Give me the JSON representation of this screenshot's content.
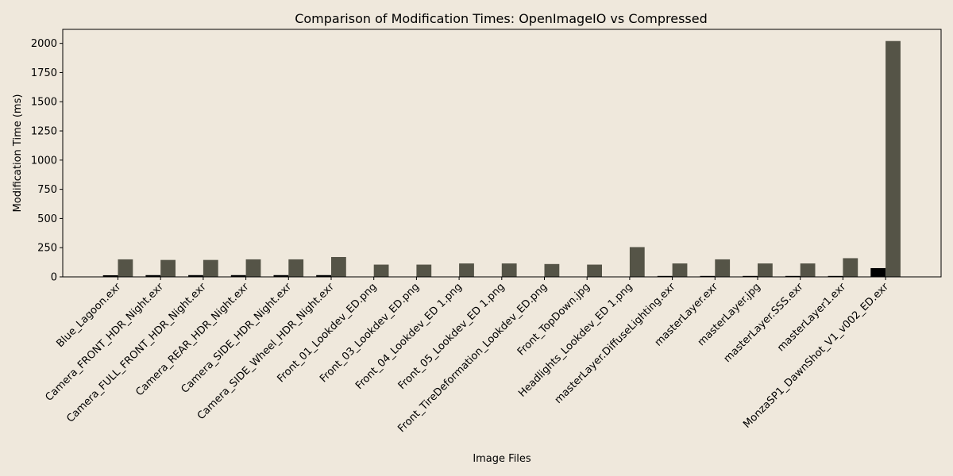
{
  "chart_data": {
    "type": "bar",
    "title": "Comparison of Modification Times: OpenImageIO vs Compressed",
    "xlabel": "Image Files",
    "ylabel": "Modification Time (ms)",
    "ylim": [
      0,
      2120
    ],
    "yticks": [
      0,
      250,
      500,
      750,
      1000,
      1250,
      1500,
      1750,
      2000
    ],
    "grid": false,
    "legend": "none",
    "categories": [
      "Blue_Lagoon.exr",
      "Camera_FRONT_HDR_Night.exr",
      "Camera_FULL_FRONT_HDR_Night.exr",
      "Camera_REAR_HDR_Night.exr",
      "Camera_SIDE_HDR_Night.exr",
      "Camera_SIDE_Wheel_HDR_Night.exr",
      "Front_01_Lookdev_ED.png",
      "Front_03_Lookdev_ED.png",
      "Front_04_Lookdev_ED 1.png",
      "Front_05_Lookdev_ED 1.png",
      "Front_TireDeformation_Lookdev_ED.png",
      "Front_TopDown.jpg",
      "Headlights_Lookdev_ED 1.png",
      "masterLayer.DiffuseLighting.exr",
      "masterLayer.exr",
      "masterLayer.jpg",
      "masterLayer.SSS.exr",
      "masterLayer1.exr",
      "MonzaSP1_DawnShot_V1_v002_ED.exr"
    ],
    "series": [
      {
        "color": "#000000",
        "values": [
          14,
          15,
          15,
          15,
          15,
          15,
          2,
          2,
          2,
          2,
          2,
          2,
          2,
          8,
          8,
          8,
          8,
          8,
          75
        ]
      },
      {
        "color": "#555447",
        "values": [
          150,
          145,
          145,
          150,
          150,
          170,
          105,
          105,
          115,
          115,
          110,
          105,
          255,
          115,
          150,
          115,
          115,
          160,
          2020
        ]
      }
    ]
  }
}
